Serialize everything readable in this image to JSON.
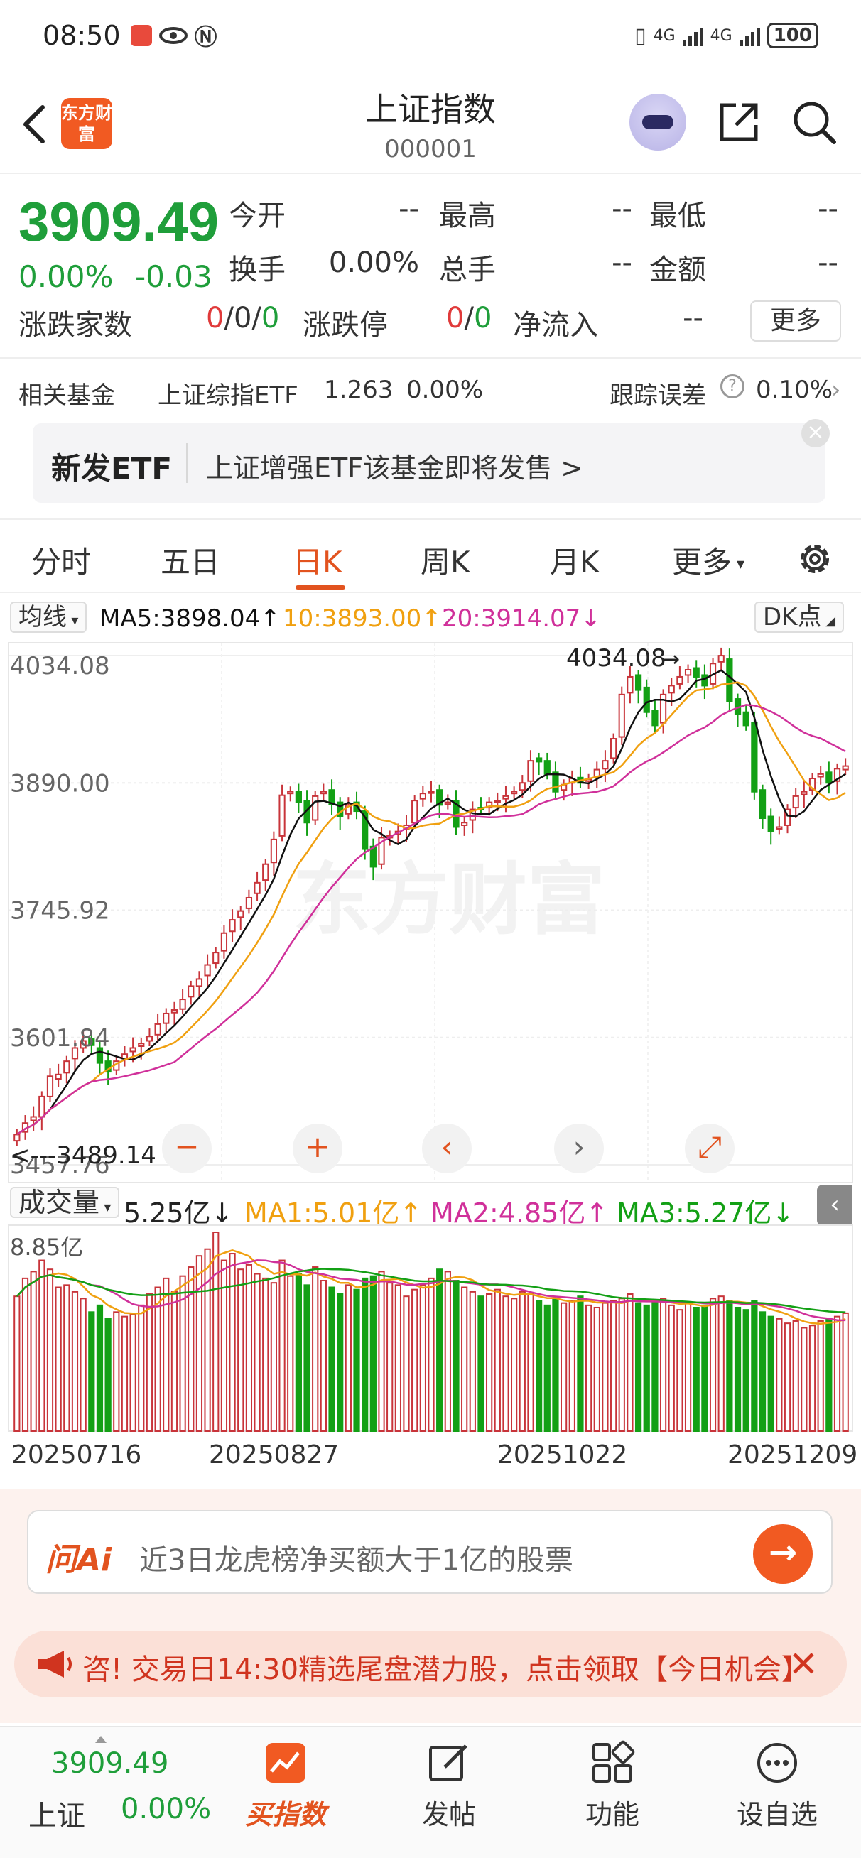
{
  "status_bar": {
    "time": "08:50",
    "battery": "100",
    "net1": "4G",
    "net2": "4G"
  },
  "header": {
    "title": "上证指数",
    "code": "000001",
    "logo_text": "东方财富"
  },
  "quote": {
    "price": "3909.49",
    "change_pct": "0.00%",
    "change": "-0.03",
    "open_label": "今开",
    "open_value": "--",
    "high_label": "最高",
    "high_value": "--",
    "low_label": "最低",
    "low_value": "--",
    "turnover_label": "换手",
    "turnover_value": "0.00%",
    "volume_label": "总手",
    "volume_value": "--",
    "amount_label": "金额",
    "amount_value": "--",
    "updown_label": "涨跌家数",
    "up": "0",
    "flat": "0",
    "down": "0",
    "limit_label": "涨跌停",
    "limit_up": "0",
    "limit_down": "0",
    "netflow_label": "净流入",
    "netflow_value": "--",
    "more_label": "更多"
  },
  "fund": {
    "label": "相关基金",
    "name": "上证综指ETF",
    "price": "1.263",
    "pct": "0.00%",
    "tracking_label": "跟踪误差",
    "tracking_value": "0.10%"
  },
  "etf_banner": {
    "tag": "新发ETF",
    "text": "上证增强ETF该基金即将发售  >"
  },
  "tabs": [
    "分时",
    "五日",
    "日K",
    "周K",
    "月K",
    "更多"
  ],
  "ma_bar": {
    "selector": "均线",
    "ma5": "MA5:3898.04↑",
    "ma10": "10:3893.00↑",
    "ma20": "20:3914.07↓",
    "dk": "DK点"
  },
  "kline": {
    "y_ticks": [
      "4034.08",
      "3890.00",
      "3745.92",
      "3601.84",
      "3457.76"
    ],
    "high_label": "4034.08",
    "low_label": "<---3489.14",
    "watermark": "东方财富"
  },
  "volume_bar": {
    "selector": "成交量",
    "current": "5.25亿↓",
    "ma1": "MA1:5.01亿↑",
    "ma2": "MA2:4.85亿↑",
    "ma3": "MA3:5.27亿↓",
    "max_label": "8.85亿"
  },
  "dates": [
    "20250716",
    "20250827",
    "20251022",
    "20251209"
  ],
  "ai": {
    "logo": "问Ai",
    "placeholder": "近3日龙虎榜净买额大于1亿的股票",
    "go": "→"
  },
  "notice": {
    "text": "咨!  交易日14:30精选尾盘潜力股，点击领取【今日机会】"
  },
  "bottom_nav": {
    "price": "3909.49",
    "name": "上证",
    "pct": "0.00%",
    "items": [
      "买指数",
      "发帖",
      "功能",
      "设自选"
    ]
  },
  "colors": {
    "up": "#c8343a",
    "down": "#13a015",
    "accent": "#e2531f",
    "ma5": "#111111",
    "ma10": "#f0a010",
    "ma20": "#d0309a"
  },
  "chart_data": {
    "type": "candlestick",
    "title": "",
    "ylim": [
      3457.76,
      4034.08
    ],
    "y_ticks": [
      4034.08,
      3890.0,
      3745.92,
      3601.84,
      3457.76
    ],
    "x_labels": [
      "20250716",
      "20250827",
      "20251022",
      "20251209"
    ],
    "series": [
      {
        "name": "MA5",
        "values": []
      },
      {
        "name": "10",
        "values": []
      },
      {
        "name": "20",
        "values": []
      }
    ],
    "close": [
      3492,
      3505,
      3512,
      3535,
      3558,
      3560,
      3575,
      3590,
      3598,
      3593,
      3573,
      3563,
      3575,
      3583,
      3590,
      3595,
      3603,
      3617,
      3629,
      3633,
      3645,
      3660,
      3668,
      3684,
      3698,
      3720,
      3735,
      3745,
      3760,
      3777,
      3798,
      3826,
      3876,
      3880,
      3868,
      3845,
      3875,
      3880,
      3866,
      3852,
      3865,
      3858,
      3815,
      3795,
      3828,
      3830,
      3835,
      3842,
      3870,
      3878,
      3880,
      3865,
      3868,
      3840,
      3845,
      3860,
      3860,
      3868,
      3870,
      3875,
      3880,
      3890,
      3915,
      3914,
      3900,
      3880,
      3888,
      3895,
      3890,
      3894,
      3905,
      3915,
      3940,
      3990,
      4010,
      3995,
      3970,
      3955,
      3990,
      4000,
      4010,
      4018,
      4010,
      4000,
      4025,
      4034,
      3982,
      3968,
      3955,
      3880,
      3850,
      3835,
      3840,
      3860,
      3875,
      3880,
      3895,
      3900,
      3890,
      3906,
      3909
    ],
    "open": [
      3485,
      3495,
      3508,
      3512,
      3535,
      3555,
      3562,
      3578,
      3590,
      3600,
      3590,
      3575,
      3565,
      3578,
      3586,
      3592,
      3598,
      3605,
      3618,
      3630,
      3634,
      3648,
      3660,
      3672,
      3686,
      3700,
      3722,
      3738,
      3748,
      3765,
      3780,
      3800,
      3830,
      3878,
      3880,
      3870,
      3848,
      3878,
      3882,
      3868,
      3855,
      3868,
      3858,
      3818,
      3798,
      3828,
      3832,
      3838,
      3845,
      3872,
      3880,
      3882,
      3866,
      3870,
      3842,
      3848,
      3862,
      3862,
      3870,
      3872,
      3878,
      3882,
      3892,
      3918,
      3915,
      3902,
      3882,
      3890,
      3896,
      3892,
      3896,
      3906,
      3918,
      3942,
      3992,
      4012,
      3998,
      3972,
      3958,
      3992,
      4002,
      4012,
      4020,
      4012,
      4002,
      4027,
      4030,
      3985,
      3970,
      3958,
      3882,
      3852,
      3838,
      3842,
      3862,
      3877,
      3882,
      3897,
      3902,
      3892,
      3905
    ],
    "volume": [
      6.0,
      6.8,
      7.1,
      7.6,
      7.2,
      6.4,
      6.5,
      6.2,
      5.9,
      5.3,
      5.6,
      5.0,
      5.3,
      5.1,
      5.2,
      5.6,
      6.1,
      6.4,
      6.8,
      6.2,
      6.9,
      7.3,
      7.8,
      8.1,
      8.85,
      7.6,
      7.9,
      7.2,
      7.4,
      7.0,
      6.8,
      6.6,
      7.6,
      6.9,
      7.0,
      6.5,
      7.3,
      6.7,
      6.4,
      6.1,
      6.5,
      6.3,
      6.8,
      6.9,
      7.1,
      6.6,
      6.5,
      6.0,
      6.3,
      6.5,
      6.8,
      7.2,
      7.1,
      6.7,
      6.4,
      6.2,
      6.0,
      6.1,
      6.3,
      6.0,
      5.9,
      6.2,
      6.1,
      5.8,
      5.6,
      5.9,
      5.7,
      5.8,
      6.0,
      5.6,
      5.5,
      5.7,
      5.8,
      5.9,
      6.1,
      5.7,
      5.6,
      5.8,
      5.9,
      5.6,
      5.4,
      5.7,
      5.5,
      5.6,
      5.9,
      6.0,
      5.8,
      5.5,
      5.4,
      5.8,
      5.3,
      5.1,
      5.0,
      4.8,
      4.9,
      4.6,
      4.7,
      4.9,
      5.0,
      5.1,
      5.25
    ]
  }
}
